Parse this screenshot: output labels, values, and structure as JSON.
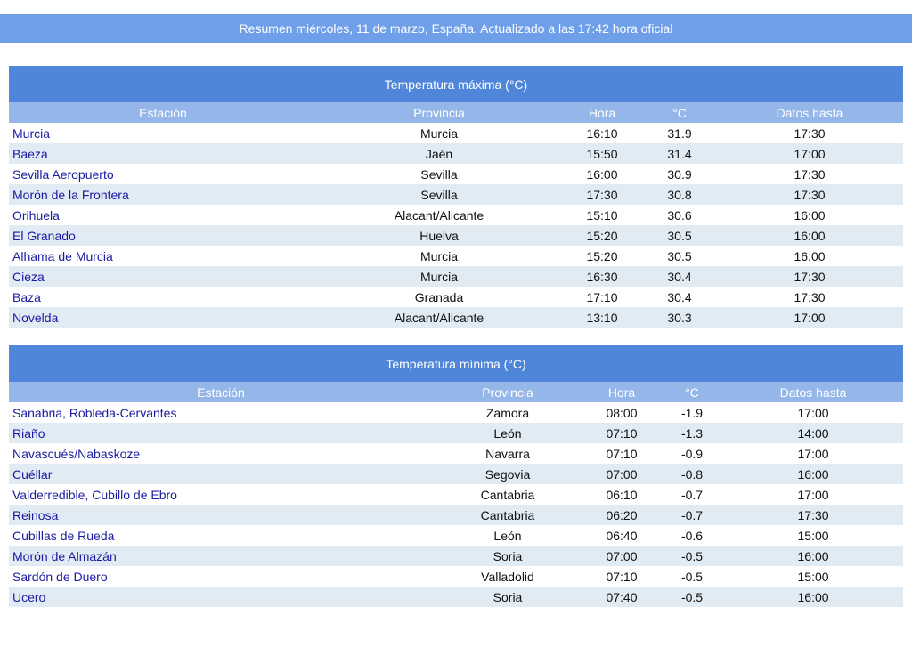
{
  "banner": "Resumen miércoles, 11 de marzo, España. Actualizado a las 17:42 hora oficial",
  "columns": [
    "Estación",
    "Provincia",
    "Hora",
    "°C",
    "Datos hasta"
  ],
  "tables": [
    {
      "title": "Temperatura máxima (°C)",
      "rows": [
        [
          "Murcia",
          "Murcia",
          "16:10",
          "31.9",
          "17:30"
        ],
        [
          "Baeza",
          "Jaén",
          "15:50",
          "31.4",
          "17:00"
        ],
        [
          "Sevilla Aeropuerto",
          "Sevilla",
          "16:00",
          "30.9",
          "17:30"
        ],
        [
          "Morón de la Frontera",
          "Sevilla",
          "17:30",
          "30.8",
          "17:30"
        ],
        [
          "Orihuela",
          "Alacant/Alicante",
          "15:10",
          "30.6",
          "16:00"
        ],
        [
          "El Granado",
          "Huelva",
          "15:20",
          "30.5",
          "16:00"
        ],
        [
          "Alhama de Murcia",
          "Murcia",
          "15:20",
          "30.5",
          "16:00"
        ],
        [
          "Cieza",
          "Murcia",
          "16:30",
          "30.4",
          "17:30"
        ],
        [
          "Baza",
          "Granada",
          "17:10",
          "30.4",
          "17:30"
        ],
        [
          "Novelda",
          "Alacant/Alicante",
          "13:10",
          "30.3",
          "17:00"
        ]
      ]
    },
    {
      "title": "Temperatura mínima (°C)",
      "rows": [
        [
          "Sanabria, Robleda-Cervantes",
          "Zamora",
          "08:00",
          "-1.9",
          "17:00"
        ],
        [
          "Riaño",
          "León",
          "07:10",
          "-1.3",
          "14:00"
        ],
        [
          "Navascués/Nabaskoze",
          "Navarra",
          "07:10",
          "-0.9",
          "17:00"
        ],
        [
          "Cuéllar",
          "Segovia",
          "07:00",
          "-0.8",
          "16:00"
        ],
        [
          "Valderredible, Cubillo de Ebro",
          "Cantabria",
          "06:10",
          "-0.7",
          "17:00"
        ],
        [
          "Reinosa",
          "Cantabria",
          "06:20",
          "-0.7",
          "17:30"
        ],
        [
          "Cubillas de Rueda",
          "León",
          "06:40",
          "-0.6",
          "15:00"
        ],
        [
          "Morón de Almazán",
          "Soria",
          "07:00",
          "-0.5",
          "16:00"
        ],
        [
          "Sardón de Duero",
          "Valladolid",
          "07:10",
          "-0.5",
          "15:00"
        ],
        [
          "Ucero",
          "Soria",
          "07:40",
          "-0.5",
          "16:00"
        ]
      ]
    }
  ]
}
